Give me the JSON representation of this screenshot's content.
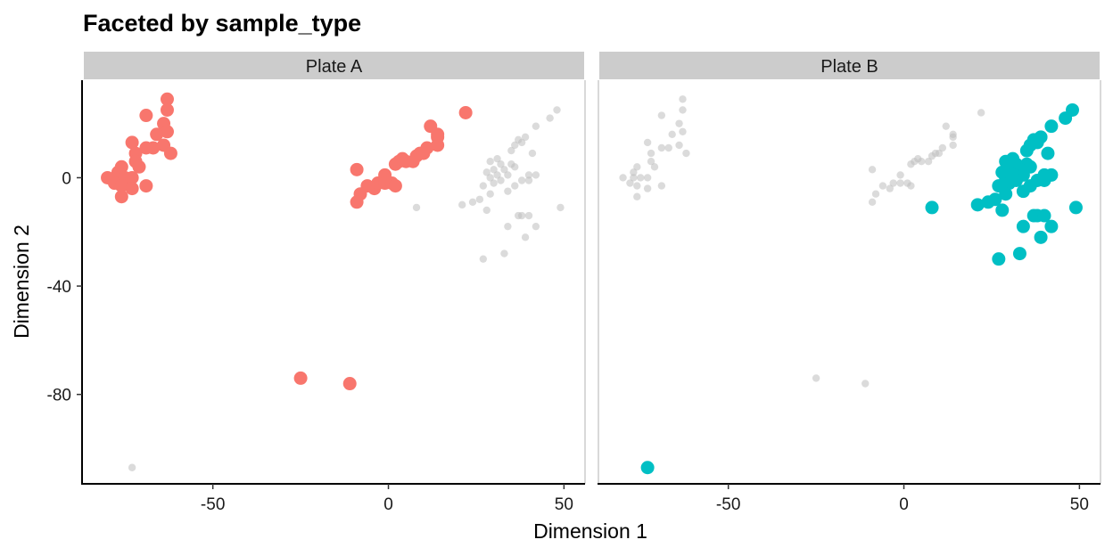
{
  "chart_data": {
    "type": "scatter",
    "title": "Faceted by sample_type",
    "xlabel": "Dimension 1",
    "ylabel": "Dimension 2",
    "xlim": [
      -87,
      56
    ],
    "ylim": [
      -113,
      36
    ],
    "x_ticks": [
      -50,
      0,
      50
    ],
    "x_tick_labels": [
      "-50",
      "0",
      "50"
    ],
    "y_ticks": [
      0,
      -40,
      -80
    ],
    "y_tick_labels": [
      "0",
      "-40",
      "-80"
    ],
    "grid": false,
    "legend": "none",
    "colors": {
      "plate_a": "#F8766D",
      "plate_b": "#00BFC4",
      "background": "#BEBEBE",
      "strip_fill": "#CCCCCC"
    },
    "facets": [
      {
        "label": "Plate A",
        "highlight_color": "#F8766D",
        "points": [
          {
            "x": -63,
            "y": 29
          },
          {
            "x": -69,
            "y": 23
          },
          {
            "x": -63,
            "y": 25
          },
          {
            "x": -64,
            "y": 20
          },
          {
            "x": -63,
            "y": 17
          },
          {
            "x": -66,
            "y": 16
          },
          {
            "x": -73,
            "y": 13
          },
          {
            "x": -64,
            "y": 12
          },
          {
            "x": -67,
            "y": 11
          },
          {
            "x": -69,
            "y": 11
          },
          {
            "x": -62,
            "y": 9
          },
          {
            "x": -72,
            "y": 9
          },
          {
            "x": -72,
            "y": 6
          },
          {
            "x": -76,
            "y": 4
          },
          {
            "x": -77,
            "y": 2
          },
          {
            "x": -71,
            "y": 4
          },
          {
            "x": -80,
            "y": 0
          },
          {
            "x": -77,
            "y": 0
          },
          {
            "x": -75,
            "y": 0
          },
          {
            "x": -73,
            "y": 0
          },
          {
            "x": -78,
            "y": -2
          },
          {
            "x": -76,
            "y": -3
          },
          {
            "x": -73,
            "y": -4
          },
          {
            "x": -69,
            "y": -3
          },
          {
            "x": -76,
            "y": -7
          },
          {
            "x": -9,
            "y": 3
          },
          {
            "x": -6,
            "y": -3
          },
          {
            "x": -8,
            "y": -6
          },
          {
            "x": -9,
            "y": -9
          },
          {
            "x": -4,
            "y": -4
          },
          {
            "x": -3,
            "y": -2
          },
          {
            "x": -1,
            "y": 1
          },
          {
            "x": -1,
            "y": -2
          },
          {
            "x": 1,
            "y": -2
          },
          {
            "x": 2,
            "y": -3
          },
          {
            "x": 2,
            "y": 5
          },
          {
            "x": 3,
            "y": 6
          },
          {
            "x": 4,
            "y": 7
          },
          {
            "x": 5,
            "y": 6
          },
          {
            "x": 7,
            "y": 6
          },
          {
            "x": 8,
            "y": 8
          },
          {
            "x": 9,
            "y": 9
          },
          {
            "x": 10,
            "y": 9
          },
          {
            "x": 11,
            "y": 11
          },
          {
            "x": 12,
            "y": 19
          },
          {
            "x": 14,
            "y": 15
          },
          {
            "x": 14,
            "y": 12
          },
          {
            "x": 14,
            "y": 16
          },
          {
            "x": 22,
            "y": 24
          },
          {
            "x": -25,
            "y": -74
          },
          {
            "x": -11,
            "y": -76
          }
        ]
      },
      {
        "label": "Plate B",
        "highlight_color": "#00BFC4",
        "points": [
          {
            "x": 48,
            "y": 25
          },
          {
            "x": 46,
            "y": 22
          },
          {
            "x": 42,
            "y": 19
          },
          {
            "x": 39,
            "y": 15
          },
          {
            "x": 37,
            "y": 14
          },
          {
            "x": 38,
            "y": 13
          },
          {
            "x": 36,
            "y": 12
          },
          {
            "x": 35,
            "y": 10
          },
          {
            "x": 41,
            "y": 9
          },
          {
            "x": 31,
            "y": 7
          },
          {
            "x": 29,
            "y": 6
          },
          {
            "x": 32,
            "y": 5
          },
          {
            "x": 35,
            "y": 5
          },
          {
            "x": 30,
            "y": 3
          },
          {
            "x": 33,
            "y": 3
          },
          {
            "x": 36,
            "y": 4
          },
          {
            "x": 28,
            "y": 2
          },
          {
            "x": 31,
            "y": 1
          },
          {
            "x": 34,
            "y": 1
          },
          {
            "x": 40,
            "y": 1
          },
          {
            "x": 42,
            "y": 1
          },
          {
            "x": 29,
            "y": 0
          },
          {
            "x": 32,
            "y": -1
          },
          {
            "x": 38,
            "y": -1
          },
          {
            "x": 40,
            "y": -1
          },
          {
            "x": 30,
            "y": -2
          },
          {
            "x": 27,
            "y": -3
          },
          {
            "x": 36,
            "y": -3
          },
          {
            "x": 34,
            "y": -5
          },
          {
            "x": 29,
            "y": -6
          },
          {
            "x": 26,
            "y": -8
          },
          {
            "x": 24,
            "y": -9
          },
          {
            "x": 21,
            "y": -10
          },
          {
            "x": 8,
            "y": -11
          },
          {
            "x": 28,
            "y": -12
          },
          {
            "x": 49,
            "y": -11
          },
          {
            "x": 37,
            "y": -14
          },
          {
            "x": 38,
            "y": -14
          },
          {
            "x": 40,
            "y": -14
          },
          {
            "x": 42,
            "y": -18
          },
          {
            "x": 34,
            "y": -18
          },
          {
            "x": 39,
            "y": -22
          },
          {
            "x": 33,
            "y": -28
          },
          {
            "x": 27,
            "y": -30
          },
          {
            "x": -73,
            "y": -107
          }
        ]
      }
    ]
  }
}
